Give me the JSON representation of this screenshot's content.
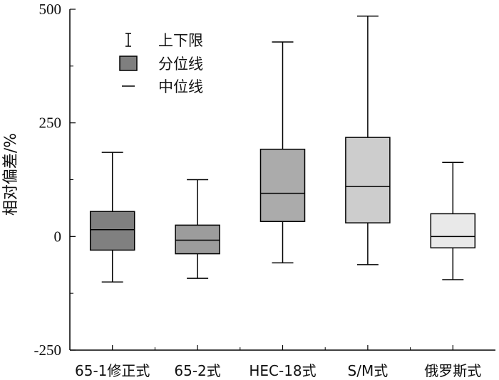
{
  "chart_data": {
    "type": "box",
    "ylabel": "相对偏差/%",
    "ylim": [
      -250,
      500
    ],
    "yticks": [
      -250,
      0,
      250,
      500
    ],
    "legend": {
      "placement": "top-left",
      "items": [
        {
          "symbol": "whisker",
          "label": "上下限"
        },
        {
          "symbol": "box",
          "label": "分位线"
        },
        {
          "symbol": "line",
          "label": "中位线"
        }
      ]
    },
    "categories": [
      "65-1修正式",
      "65-2式",
      "HEC-18式",
      "S/M式",
      "俄罗斯式"
    ],
    "boxes": [
      {
        "min": -100,
        "q1": -30,
        "median": 15,
        "q3": 55,
        "max": 185,
        "color": "#808080"
      },
      {
        "min": -92,
        "q1": -38,
        "median": -8,
        "q3": 25,
        "max": 125,
        "color": "#9c9c9c"
      },
      {
        "min": -58,
        "q1": 33,
        "median": 95,
        "q3": 192,
        "max": 428,
        "color": "#ababab"
      },
      {
        "min": -62,
        "q1": 30,
        "median": 110,
        "q3": 218,
        "max": 485,
        "color": "#cdcdcd"
      },
      {
        "min": -95,
        "q1": -25,
        "median": 0,
        "q3": 50,
        "max": 163,
        "color": "#e9e9e9"
      }
    ],
    "legend_box_color": "#7f7f7f"
  }
}
